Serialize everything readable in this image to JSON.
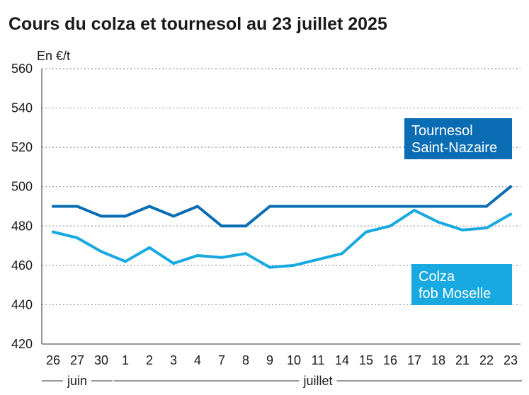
{
  "chart_data": {
    "type": "line",
    "title": "Cours du colza et tournesol au 23 juillet 2025",
    "unit_label": "En €/t",
    "ylim": [
      420,
      560
    ],
    "yticks": [
      420,
      440,
      460,
      480,
      500,
      520,
      540,
      560
    ],
    "grid": "horizontal dotted",
    "categories": [
      "26",
      "27",
      "30",
      "1",
      "2",
      "3",
      "4",
      "7",
      "8",
      "9",
      "10",
      "11",
      "14",
      "15",
      "16",
      "17",
      "18",
      "21",
      "22",
      "23"
    ],
    "month_labels": [
      {
        "label": "juin",
        "from": 0,
        "to": 2
      },
      {
        "label": "juillet",
        "from": 3,
        "to": 19
      }
    ],
    "series": [
      {
        "name": "Tournesol Saint-Nazaire",
        "name_lines": [
          "Tournesol",
          "Saint-Nazaire"
        ],
        "color": "#0a6db3",
        "values": [
          490,
          490,
          485,
          485,
          490,
          485,
          490,
          480,
          480,
          490,
          490,
          490,
          490,
          490,
          490,
          490,
          490,
          490,
          490,
          500
        ]
      },
      {
        "name": "Colza fob Moselle",
        "name_lines": [
          "Colza",
          "fob Moselle"
        ],
        "color": "#17a9df",
        "values": [
          477,
          474,
          467,
          462,
          469,
          461,
          465,
          464,
          466,
          459,
          460,
          463,
          466,
          477,
          480,
          488,
          482,
          478,
          479,
          486
        ]
      }
    ]
  }
}
